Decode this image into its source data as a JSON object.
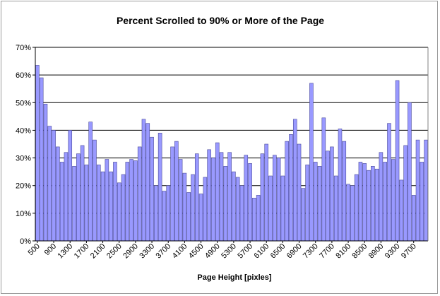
{
  "chart_data": {
    "type": "bar",
    "title": "Percent Scrolled to 90% or More of the Page",
    "xlabel": "Page Height [pixles]",
    "ylabel": "",
    "ylim": [
      0,
      70
    ],
    "yticks": [
      "0%",
      "10%",
      "20%",
      "30%",
      "40%",
      "50%",
      "60%",
      "70%"
    ],
    "ytick_values": [
      0,
      10,
      20,
      30,
      40,
      50,
      60,
      70
    ],
    "grid": true,
    "x": [
      500,
      600,
      700,
      800,
      900,
      1000,
      1100,
      1200,
      1300,
      1400,
      1500,
      1600,
      1700,
      1800,
      1900,
      2000,
      2100,
      2200,
      2300,
      2400,
      2500,
      2600,
      2700,
      2800,
      2900,
      3000,
      3100,
      3200,
      3300,
      3400,
      3500,
      3600,
      3700,
      3800,
      3900,
      4000,
      4100,
      4200,
      4300,
      4400,
      4500,
      4600,
      4700,
      4800,
      4900,
      5000,
      5100,
      5200,
      5300,
      5400,
      5500,
      5600,
      5700,
      5800,
      5900,
      6000,
      6100,
      6200,
      6300,
      6400,
      6500,
      6600,
      6700,
      6800,
      6900,
      7000,
      7100,
      7200,
      7300,
      7400,
      7500,
      7600,
      7700,
      7800,
      7900,
      8000,
      8100,
      8200,
      8300,
      8400,
      8500,
      8600,
      8700,
      8800,
      8900,
      9000,
      9100,
      9200,
      9300,
      9400,
      9500,
      9600,
      9700,
      9800,
      9900,
      10000
    ],
    "x_tick_labels": [
      "500",
      "900",
      "1300",
      "1700",
      "2100",
      "2500",
      "2900",
      "3300",
      "3700",
      "4100",
      "4500",
      "4900",
      "5300",
      "5700",
      "6100",
      "6500",
      "6900",
      "7300",
      "7700",
      "8100",
      "8500",
      "8900",
      "9300",
      "9700"
    ],
    "values": [
      63.5,
      59,
      49.5,
      41.5,
      40,
      34,
      28.5,
      32,
      40,
      27,
      31.5,
      34.5,
      27.5,
      43,
      36.5,
      27.5,
      25,
      29.5,
      25,
      28.5,
      21,
      24,
      28.5,
      29.5,
      29,
      34,
      44,
      42.5,
      37.5,
      20,
      39,
      18,
      20,
      34,
      36,
      29.5,
      24.5,
      17.5,
      24,
      31.5,
      17,
      23,
      33,
      30,
      35.5,
      32,
      27,
      32,
      25,
      23,
      20,
      31,
      28,
      15.5,
      16.5,
      31.5,
      35,
      23.5,
      31,
      30,
      23.5,
      36,
      38.5,
      44,
      35,
      19,
      27.5,
      57,
      28.5,
      27,
      44.5,
      32.5,
      34,
      23.5,
      40.5,
      36,
      20.5,
      20,
      24,
      28.5,
      28,
      25.5,
      27,
      26,
      32,
      28.5,
      42.5,
      29.5,
      58,
      22,
      34.5,
      50,
      16.5,
      36.5,
      28.5,
      36.5
    ],
    "colors": {
      "bar_fill": "#9999ff",
      "bar_stroke": "#4a4a9a",
      "grid": "#000000",
      "plot_bg": "#ffffff"
    }
  }
}
